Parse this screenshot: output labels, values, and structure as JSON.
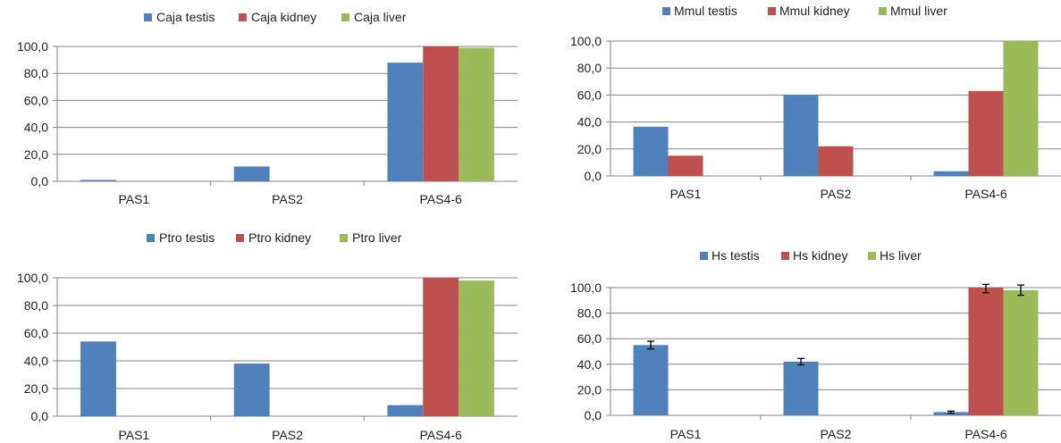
{
  "colors": {
    "testis": "#4f81bd",
    "kidney": "#c0504d",
    "liver": "#9bbb59",
    "axis": "#868686"
  },
  "chart_data": [
    {
      "type": "bar",
      "categories": [
        "PAS1",
        "PAS2",
        "PAS4-6"
      ],
      "ylim": [
        0,
        100
      ],
      "yticks": [
        "0,0",
        "20,0",
        "40,0",
        "60,0",
        "80,0",
        "100,0"
      ],
      "legend": "top",
      "series": [
        {
          "name": "Caja testis",
          "values": [
            1.0,
            11.0,
            88.0
          ]
        },
        {
          "name": "Caja kidney",
          "values": [
            0,
            0,
            100.0
          ]
        },
        {
          "name": "Caja liver",
          "values": [
            0,
            0,
            99.0
          ]
        }
      ]
    },
    {
      "type": "bar",
      "categories": [
        "PAS1",
        "PAS2",
        "PAS4-6"
      ],
      "ylim": [
        0,
        100
      ],
      "yticks": [
        "0,0",
        "20,0",
        "40,0",
        "60,0",
        "80,0",
        "100,0"
      ],
      "legend": "top",
      "series": [
        {
          "name": "Mmul testis",
          "values": [
            36.5,
            60.0,
            3.5
          ]
        },
        {
          "name": "Mmul kidney",
          "values": [
            15.0,
            22.0,
            63.0
          ]
        },
        {
          "name": "Mmul liver",
          "values": [
            0,
            0,
            100.0
          ]
        }
      ]
    },
    {
      "type": "bar",
      "categories": [
        "PAS1",
        "PAS2",
        "PAS4-6"
      ],
      "ylim": [
        0,
        100
      ],
      "yticks": [
        "0,0",
        "20,0",
        "40,0",
        "60,0",
        "80,0",
        "100,0"
      ],
      "legend": "top",
      "series": [
        {
          "name": "Ptro testis",
          "values": [
            54.0,
            38.0,
            8.0
          ]
        },
        {
          "name": "Ptro kidney",
          "values": [
            0,
            0,
            100.0
          ]
        },
        {
          "name": "Ptro liver",
          "values": [
            0,
            0,
            98.0
          ]
        }
      ]
    },
    {
      "type": "bar",
      "categories": [
        "PAS1",
        "PAS2",
        "PAS4-6"
      ],
      "ylim": [
        0,
        100
      ],
      "yticks": [
        "0,0",
        "20,0",
        "40,0",
        "60,0",
        "80,0",
        "100,0"
      ],
      "legend": "top",
      "series": [
        {
          "name": "Hs testis",
          "values": [
            55.0,
            42.0,
            2.5
          ],
          "errors": [
            3.0,
            2.5,
            0.8
          ]
        },
        {
          "name": "Hs kidney",
          "values": [
            0,
            0,
            100.0
          ],
          "errors": [
            0,
            0,
            4.0
          ]
        },
        {
          "name": "Hs liver",
          "values": [
            0,
            0,
            98.0
          ],
          "errors": [
            0,
            0,
            4.0
          ]
        }
      ]
    }
  ]
}
